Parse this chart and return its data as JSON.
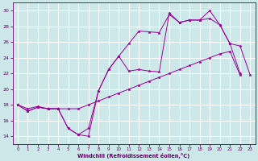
{
  "x": [
    0,
    1,
    2,
    3,
    4,
    5,
    6,
    7,
    8,
    9,
    10,
    11,
    12,
    13,
    14,
    15,
    16,
    17,
    18,
    19,
    20,
    21,
    22,
    23
  ],
  "line1": [
    18.0,
    17.5,
    17.8,
    17.5,
    17.5,
    17.5,
    17.5,
    18.0,
    18.5,
    19.0,
    19.5,
    20.0,
    20.5,
    21.0,
    21.5,
    22.0,
    22.5,
    23.0,
    23.5,
    24.0,
    24.5,
    24.8,
    21.8,
    null
  ],
  "line2": [
    18.0,
    17.2,
    17.7,
    17.5,
    17.5,
    15.0,
    14.2,
    14.0,
    19.8,
    22.5,
    24.2,
    25.8,
    27.4,
    27.3,
    27.2,
    29.5,
    28.5,
    28.8,
    28.8,
    29.0,
    28.2,
    25.8,
    22.0,
    null
  ],
  "line3": [
    18.0,
    17.2,
    17.7,
    17.5,
    17.5,
    15.0,
    14.2,
    15.0,
    19.8,
    22.5,
    24.2,
    22.3,
    22.5,
    22.3,
    22.2,
    29.7,
    28.5,
    28.8,
    28.8,
    30.0,
    28.2,
    25.8,
    25.5,
    21.8
  ],
  "color": "#990099",
  "bg_color": "#cce8e8",
  "grid_color": "#ffffff",
  "xlabel": "Windchill (Refroidissement éolien,°C)",
  "ylim": [
    13.0,
    31.0
  ],
  "xlim": [
    -0.5,
    23.5
  ],
  "yticks": [
    14,
    16,
    18,
    20,
    22,
    24,
    26,
    28,
    30
  ],
  "xticks": [
    0,
    1,
    2,
    3,
    4,
    5,
    6,
    7,
    8,
    9,
    10,
    11,
    12,
    13,
    14,
    15,
    16,
    17,
    18,
    19,
    20,
    21,
    22,
    23
  ]
}
